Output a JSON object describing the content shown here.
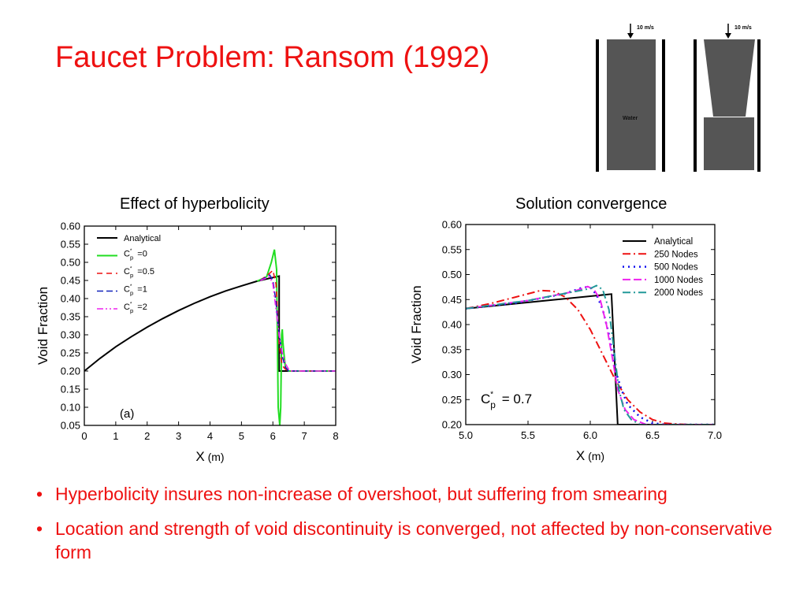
{
  "slide": {
    "title": "Faucet Problem: Ransom (1992)",
    "bullets": [
      "Hyperbolicity insures non-increase of overshoot, but suffering from smearing",
      "Location and strength of void discontinuity is converged, not affected by non-conservative form"
    ]
  },
  "diagram": {
    "velocity_label": "10 m/s",
    "water_label": "Water",
    "fill_color": "#555555"
  },
  "chart_data": [
    {
      "type": "line",
      "title": "Effect of hyperbolicity",
      "xlabel": "X",
      "xunit": "(m)",
      "ylabel": "Void Fraction",
      "xlim": [
        0,
        8
      ],
      "ylim": [
        0.05,
        0.6
      ],
      "xticks": [
        0,
        1,
        2,
        3,
        4,
        5,
        6,
        7,
        8
      ],
      "yticks": [
        0.05,
        0.1,
        0.15,
        0.2,
        0.25,
        0.3,
        0.35,
        0.4,
        0.45,
        0.5,
        0.55,
        0.6
      ],
      "annotation": "(a)",
      "legend_position": "top-left",
      "series": [
        {
          "name": "Analytical",
          "legend_parts": [
            "Analytical"
          ],
          "color": "#000000",
          "dash": "",
          "width": 2,
          "x": [
            0,
            0.5,
            1,
            1.5,
            2,
            2.5,
            3,
            3.5,
            4,
            4.5,
            5,
            5.5,
            6,
            6.2,
            6.2,
            6.3,
            8
          ],
          "y": [
            0.2,
            0.235,
            0.267,
            0.295,
            0.321,
            0.345,
            0.367,
            0.387,
            0.405,
            0.421,
            0.435,
            0.448,
            0.458,
            0.462,
            0.2,
            0.2,
            0.2
          ]
        },
        {
          "name": "Cp* =0",
          "legend_parts": [
            "C",
            "p",
            "*",
            "=0"
          ],
          "color": "#22dd22",
          "dash": "",
          "width": 2,
          "x": [
            5.5,
            5.8,
            5.95,
            6.05,
            6.12,
            6.17,
            6.22,
            6.25,
            6.28,
            6.3,
            6.32,
            6.35,
            6.4,
            6.5,
            6.7,
            7.0,
            8
          ],
          "y": [
            0.448,
            0.46,
            0.5,
            0.535,
            0.48,
            0.1,
            0.05,
            0.1,
            0.3,
            0.315,
            0.28,
            0.25,
            0.21,
            0.2,
            0.2,
            0.2,
            0.2
          ]
        },
        {
          "name": "Cp* =0.5",
          "legend_parts": [
            "C",
            "p",
            "*",
            "=0.5"
          ],
          "color": "#ee1111",
          "dash": "7,5",
          "width": 1.6,
          "x": [
            5.6,
            5.9,
            6.0,
            6.1,
            6.15,
            6.2,
            6.25,
            6.3,
            6.4,
            6.5,
            8
          ],
          "y": [
            0.45,
            0.47,
            0.478,
            0.44,
            0.36,
            0.28,
            0.24,
            0.215,
            0.205,
            0.2,
            0.2
          ]
        },
        {
          "name": "Cp* =1",
          "legend_parts": [
            "C",
            "p",
            "*",
            "=1"
          ],
          "color": "#1122bb",
          "dash": "8,4",
          "width": 1.6,
          "x": [
            5.6,
            5.9,
            6.0,
            6.1,
            6.2,
            6.3,
            6.4,
            6.5,
            8
          ],
          "y": [
            0.45,
            0.465,
            0.45,
            0.39,
            0.3,
            0.24,
            0.21,
            0.2,
            0.2
          ]
        },
        {
          "name": "Cp* =2",
          "legend_parts": [
            "C",
            "p",
            "*",
            "=2"
          ],
          "color": "#ee22ee",
          "dash": "8,3,2,3,2,3",
          "width": 1.6,
          "x": [
            5.6,
            5.9,
            6.0,
            6.1,
            6.2,
            6.3,
            6.4,
            6.5,
            6.6,
            8
          ],
          "y": [
            0.45,
            0.46,
            0.44,
            0.37,
            0.3,
            0.25,
            0.22,
            0.205,
            0.2,
            0.2
          ]
        }
      ]
    },
    {
      "type": "line",
      "title": "Solution convergence",
      "xlabel": "X",
      "xunit": "(m)",
      "ylabel": "Void Fraction",
      "xlim": [
        5.0,
        7.0
      ],
      "ylim": [
        0.2,
        0.6
      ],
      "xticks": [
        5.0,
        5.5,
        6.0,
        6.5,
        7.0
      ],
      "yticks": [
        0.2,
        0.25,
        0.3,
        0.35,
        0.4,
        0.45,
        0.5,
        0.55,
        0.6
      ],
      "annotation_parts": [
        "C",
        "p",
        "*",
        "= 0.7"
      ],
      "legend_position": "top-right",
      "series": [
        {
          "name": "Analytical",
          "color": "#000000",
          "dash": "",
          "width": 2,
          "x": [
            5.0,
            6.17,
            6.22,
            6.25,
            7.0
          ],
          "y": [
            0.432,
            0.461,
            0.2,
            0.2,
            0.2
          ]
        },
        {
          "name": "250 Nodes",
          "color": "#ee1111",
          "dash": "10,4,2,4",
          "width": 2,
          "x": [
            5.0,
            5.2,
            5.4,
            5.6,
            5.7,
            5.8,
            5.9,
            6.0,
            6.1,
            6.2,
            6.3,
            6.4,
            6.5,
            6.6,
            6.7,
            6.8,
            7.0
          ],
          "y": [
            0.432,
            0.442,
            0.455,
            0.468,
            0.467,
            0.455,
            0.43,
            0.39,
            0.34,
            0.29,
            0.25,
            0.225,
            0.21,
            0.203,
            0.201,
            0.2,
            0.2
          ]
        },
        {
          "name": "500 Nodes",
          "color": "#1111ee",
          "dash": "2,5",
          "width": 2.5,
          "x": [
            5.0,
            5.4,
            5.8,
            5.95,
            6.0,
            6.05,
            6.1,
            6.15,
            6.2,
            6.25,
            6.3,
            6.4,
            6.5,
            6.6,
            7.0
          ],
          "y": [
            0.432,
            0.443,
            0.462,
            0.475,
            0.474,
            0.46,
            0.43,
            0.38,
            0.31,
            0.27,
            0.24,
            0.215,
            0.203,
            0.2,
            0.2
          ]
        },
        {
          "name": "1000 Nodes",
          "color": "#ee22ee",
          "dash": "10,4",
          "width": 2,
          "x": [
            5.0,
            5.5,
            5.85,
            5.98,
            6.03,
            6.08,
            6.13,
            6.18,
            6.22,
            6.28,
            6.35,
            6.45,
            7.0
          ],
          "y": [
            0.432,
            0.448,
            0.465,
            0.476,
            0.47,
            0.45,
            0.4,
            0.33,
            0.27,
            0.23,
            0.21,
            0.2,
            0.2
          ]
        },
        {
          "name": "2000 Nodes",
          "color": "#229999",
          "dash": "10,4,2,4",
          "width": 2,
          "x": [
            5.0,
            5.5,
            6.0,
            6.05,
            6.1,
            6.15,
            6.2,
            6.23,
            6.27,
            6.33,
            6.4,
            7.0
          ],
          "y": [
            0.432,
            0.448,
            0.472,
            0.478,
            0.47,
            0.43,
            0.33,
            0.27,
            0.23,
            0.21,
            0.2,
            0.2
          ]
        }
      ]
    }
  ]
}
